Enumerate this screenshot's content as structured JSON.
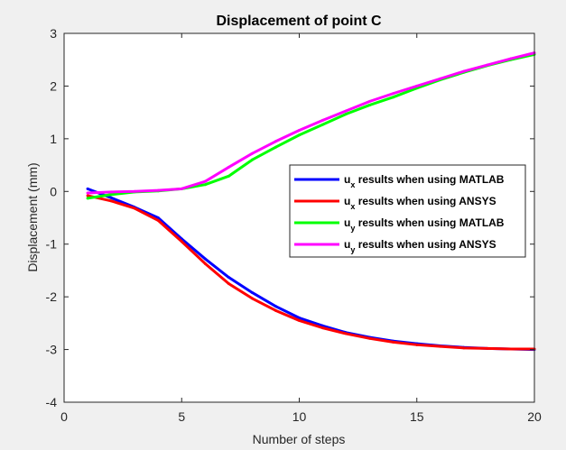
{
  "chart_data": {
    "type": "line",
    "title": "Displacement of point C",
    "xlabel": "Number of steps",
    "ylabel": "Displacement (mm)",
    "xlim": [
      0,
      20
    ],
    "ylim": [
      -4,
      3
    ],
    "xticks": [
      "0",
      "5",
      "10",
      "15",
      "20"
    ],
    "yticks": [
      "-4",
      "-3",
      "-2",
      "-1",
      "0",
      "1",
      "2",
      "3"
    ],
    "grid": false,
    "legend_position": "right",
    "series": [
      {
        "name": "u_x results when using MATLAB",
        "var": "u",
        "sub": "x",
        "rest": " results when using MATLAB",
        "color": "#0000ff",
        "x": [
          1,
          2,
          3,
          4,
          5,
          6,
          7,
          8,
          9,
          10,
          11,
          12,
          13,
          14,
          15,
          16,
          17,
          18,
          19,
          20
        ],
        "y": [
          0.05,
          -0.12,
          -0.3,
          -0.5,
          -0.9,
          -1.28,
          -1.63,
          -1.92,
          -2.18,
          -2.4,
          -2.55,
          -2.68,
          -2.77,
          -2.84,
          -2.89,
          -2.93,
          -2.96,
          -2.98,
          -2.99,
          -3.0
        ]
      },
      {
        "name": "u_x results when using ANSYS",
        "var": "u",
        "sub": "x",
        "rest": " results when using ANSYS",
        "color": "#ff0000",
        "x": [
          1,
          2,
          3,
          4,
          5,
          6,
          7,
          8,
          9,
          10,
          11,
          12,
          13,
          14,
          15,
          16,
          17,
          18,
          19,
          20
        ],
        "y": [
          -0.08,
          -0.18,
          -0.32,
          -0.55,
          -0.95,
          -1.37,
          -1.75,
          -2.03,
          -2.26,
          -2.45,
          -2.59,
          -2.7,
          -2.79,
          -2.86,
          -2.91,
          -2.94,
          -2.97,
          -2.98,
          -2.99,
          -2.99
        ]
      },
      {
        "name": "u_y results when using MATLAB",
        "var": "u",
        "sub": "y",
        "rest": " results when using MATLAB",
        "color": "#00ff00",
        "x": [
          1,
          2,
          3,
          4,
          5,
          6,
          7,
          8,
          9,
          10,
          11,
          12,
          13,
          14,
          15,
          16,
          17,
          18,
          19,
          20
        ],
        "y": [
          -0.13,
          -0.06,
          -0.01,
          0.01,
          0.05,
          0.13,
          0.29,
          0.6,
          0.84,
          1.07,
          1.27,
          1.47,
          1.64,
          1.79,
          1.96,
          2.12,
          2.26,
          2.39,
          2.5,
          2.6
        ]
      },
      {
        "name": "u_y results when using ANSYS",
        "var": "u",
        "sub": "y",
        "rest": " results when using ANSYS",
        "color": "#ff00ff",
        "x": [
          1,
          2,
          3,
          4,
          5,
          6,
          7,
          8,
          9,
          10,
          11,
          12,
          13,
          14,
          15,
          16,
          17,
          18,
          19,
          20
        ],
        "y": [
          -0.03,
          -0.01,
          0.0,
          0.02,
          0.05,
          0.19,
          0.46,
          0.72,
          0.95,
          1.16,
          1.35,
          1.53,
          1.71,
          1.86,
          2.0,
          2.14,
          2.28,
          2.4,
          2.52,
          2.63
        ]
      }
    ]
  }
}
